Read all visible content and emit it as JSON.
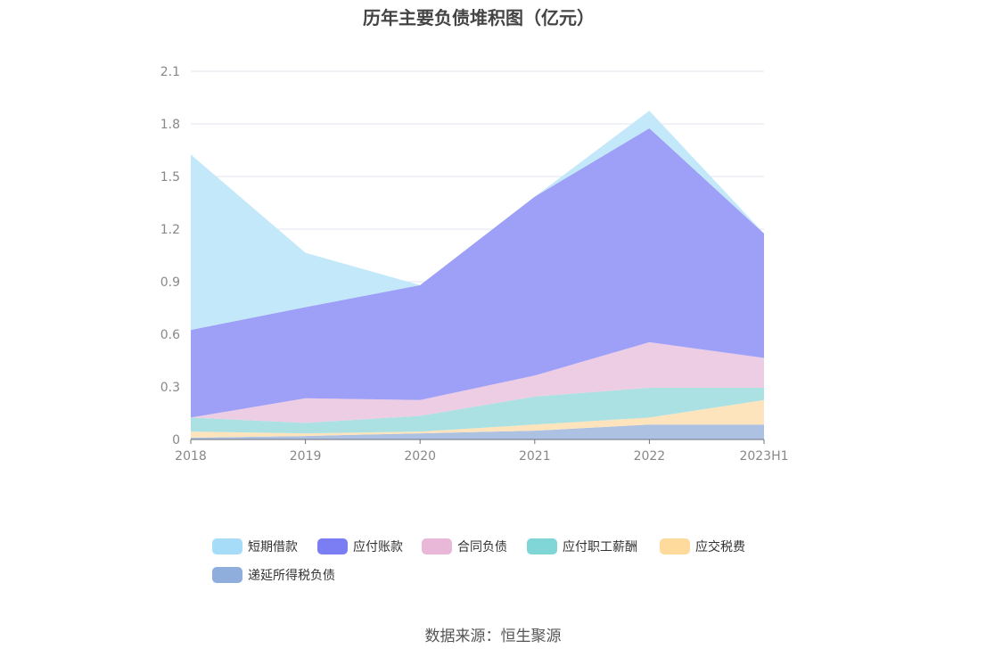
{
  "chart_data": {
    "type": "area",
    "stacked": true,
    "title": "历年主要负债堆积图（亿元）",
    "categories": [
      "2018",
      "2019",
      "2020",
      "2021",
      "2022",
      "2023H1"
    ],
    "ylim": [
      0,
      2.1
    ],
    "yticks": [
      "0",
      "0.3",
      "0.6",
      "0.9",
      "1.2",
      "1.5",
      "1.8",
      "2.1"
    ],
    "ytick_values": [
      0,
      0.3,
      0.6,
      0.9,
      1.2,
      1.5,
      1.8,
      2.1
    ],
    "grid": true,
    "legend_placement": "bottom",
    "series": [
      {
        "name": "递延所得税负债",
        "values": [
          0.01,
          0.02,
          0.035,
          0.05,
          0.085,
          0.085
        ],
        "color": "#8faedc",
        "fill": "#adc1e2"
      },
      {
        "name": "应交税费",
        "values": [
          0.035,
          0.015,
          0.01,
          0.035,
          0.04,
          0.14
        ],
        "color": "#fedb9c",
        "fill": "#fde4bd"
      },
      {
        "name": "应付职工薪酬",
        "values": [
          0.08,
          0.06,
          0.09,
          0.16,
          0.17,
          0.07
        ],
        "color": "#80d5d6",
        "fill": "#abe1e2"
      },
      {
        "name": "合同负债",
        "values": [
          0,
          0.14,
          0.09,
          0.12,
          0.26,
          0.17
        ],
        "color": "#e9b7d8",
        "fill": "#edcde3"
      },
      {
        "name": "应付账款",
        "values": [
          0.5,
          0.52,
          0.655,
          1.02,
          1.22,
          0.71
        ],
        "color": "#7b7ef2",
        "fill": "#9ea0f7"
      },
      {
        "name": "短期借款",
        "values": [
          1.0,
          0.31,
          0,
          0,
          0.1,
          0
        ],
        "color": "#a6dcf8",
        "fill": "#c3e8fa"
      }
    ],
    "legend_order": [
      5,
      4,
      3,
      2,
      1,
      0
    ]
  },
  "source": "数据来源：恒生聚源"
}
